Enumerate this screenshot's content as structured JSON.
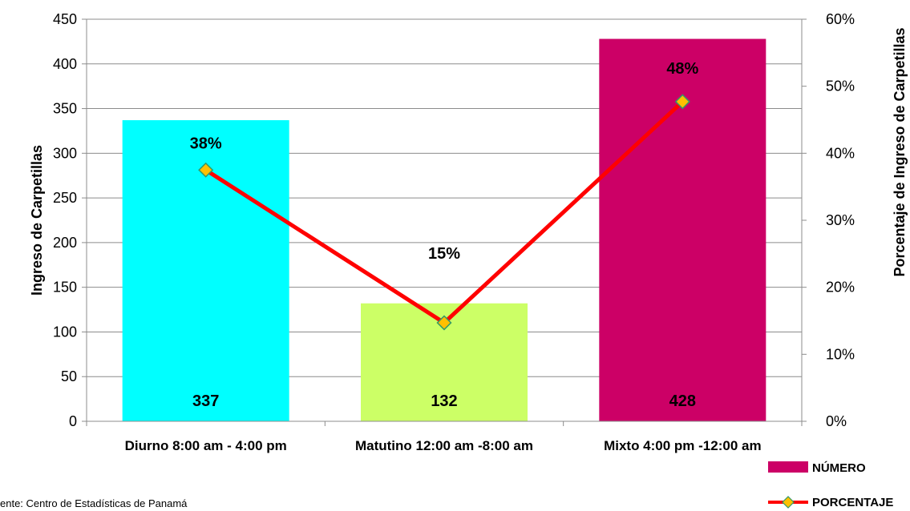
{
  "chart_data": {
    "type": "bar",
    "categories": [
      "Diurno 8:00 am - 4:00 pm",
      "Matutino 12:00 am -8:00 am",
      "Mixto 4:00 pm -12:00 am"
    ],
    "series": [
      {
        "name": "NÚMERO",
        "type": "bar",
        "axis": "left",
        "values": [
          337,
          132,
          428
        ],
        "colors": [
          "#00FFFF",
          "#CCFF66",
          "#CC0066"
        ],
        "labels": [
          "337",
          "132",
          "428"
        ]
      },
      {
        "name": "PORCENTAJE",
        "type": "line",
        "axis": "right",
        "values": [
          0.375,
          0.147,
          0.477
        ],
        "labels": [
          "38%",
          "15%",
          "48%"
        ],
        "line_color": "#FF0000",
        "marker_color": "#FFC000",
        "marker_border": "#339966"
      }
    ],
    "ylabel": "Ingreso de Carpetillas",
    "y2label": "Porcentaje de Ingreso de Carpetillas",
    "ylim": [
      0,
      450
    ],
    "yticks": [
      0,
      50,
      100,
      150,
      200,
      250,
      300,
      350,
      400,
      450
    ],
    "y2lim": [
      0,
      0.6
    ],
    "y2ticks": [
      "0%",
      "10%",
      "20%",
      "30%",
      "40%",
      "50%",
      "60%"
    ],
    "grid": true,
    "legend_position": "bottom-right"
  },
  "source_note": "ente: Centro de Estadísticas de Panamá"
}
